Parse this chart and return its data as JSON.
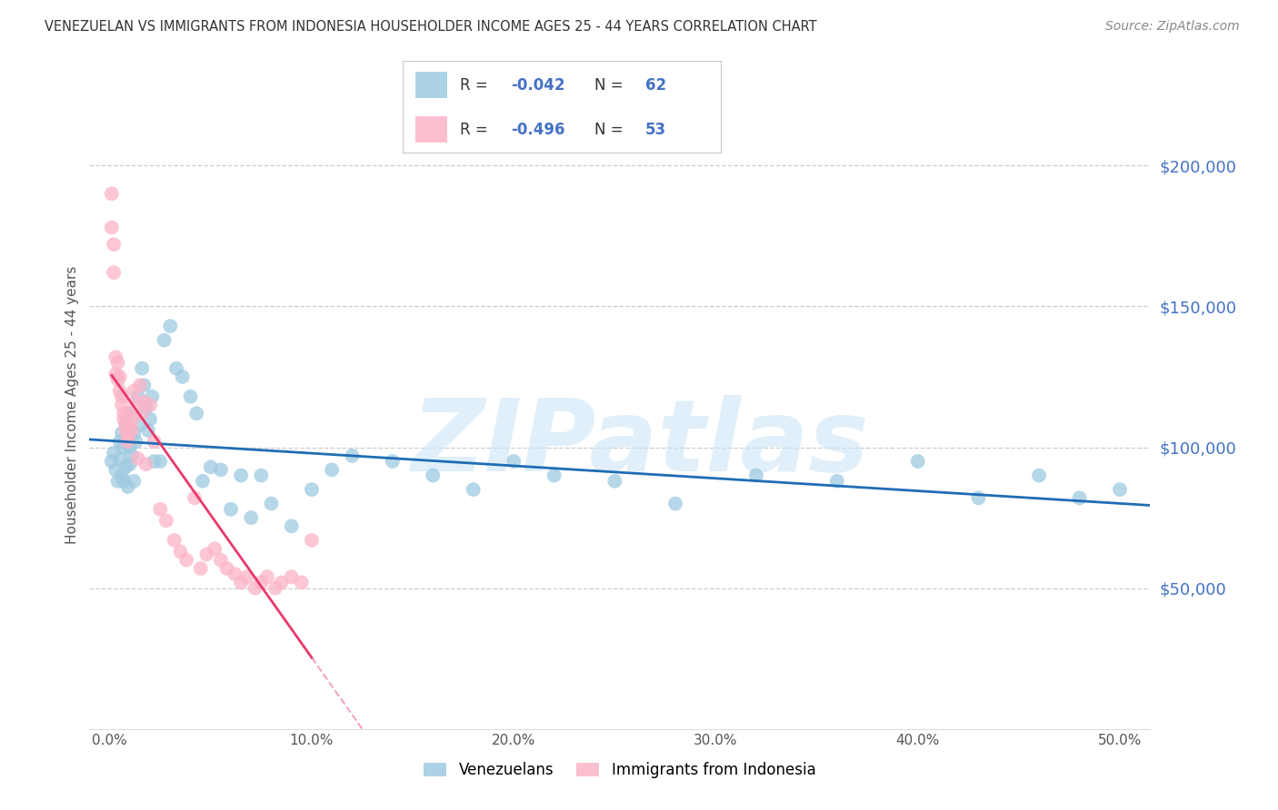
{
  "title": "VENEZUELAN VS IMMIGRANTS FROM INDONESIA HOUSEHOLDER INCOME AGES 25 - 44 YEARS CORRELATION CHART",
  "source": "Source: ZipAtlas.com",
  "xlabel_ticks": [
    "0.0%",
    "10.0%",
    "20.0%",
    "30.0%",
    "40.0%",
    "50.0%"
  ],
  "xlabel_vals": [
    0.0,
    0.1,
    0.2,
    0.3,
    0.4,
    0.5
  ],
  "ylabel_ticks": [
    "$50,000",
    "$100,000",
    "$150,000",
    "$200,000"
  ],
  "ylabel_vals": [
    50000,
    100000,
    150000,
    200000
  ],
  "ylim": [
    0,
    230000
  ],
  "xlim": [
    -0.01,
    0.515
  ],
  "watermark": "ZIPatlas",
  "venezuelan_color": "#9ecae1",
  "indonesian_color": "#fbb4c8",
  "venezuelan_line_color": "#1f6db5",
  "indonesian_line_color": "#e8396a",
  "venezuelan_x": [
    0.001,
    0.002,
    0.003,
    0.004,
    0.005,
    0.005,
    0.006,
    0.006,
    0.007,
    0.007,
    0.008,
    0.008,
    0.009,
    0.009,
    0.01,
    0.01,
    0.011,
    0.012,
    0.012,
    0.013,
    0.014,
    0.015,
    0.016,
    0.017,
    0.018,
    0.019,
    0.02,
    0.021,
    0.022,
    0.025,
    0.027,
    0.03,
    0.033,
    0.036,
    0.04,
    0.043,
    0.046,
    0.05,
    0.055,
    0.06,
    0.065,
    0.07,
    0.075,
    0.08,
    0.09,
    0.1,
    0.11,
    0.12,
    0.14,
    0.16,
    0.18,
    0.2,
    0.22,
    0.25,
    0.28,
    0.32,
    0.36,
    0.4,
    0.43,
    0.46,
    0.48,
    0.5
  ],
  "venezuelan_y": [
    95000,
    98000,
    92000,
    88000,
    102000,
    96000,
    90000,
    105000,
    88000,
    100000,
    93000,
    108000,
    86000,
    112000,
    94000,
    100000,
    97000,
    88000,
    105000,
    102000,
    118000,
    108000,
    128000,
    122000,
    114000,
    106000,
    110000,
    118000,
    95000,
    95000,
    138000,
    143000,
    128000,
    125000,
    118000,
    112000,
    88000,
    93000,
    92000,
    78000,
    90000,
    75000,
    90000,
    80000,
    72000,
    85000,
    92000,
    97000,
    95000,
    90000,
    85000,
    95000,
    90000,
    88000,
    80000,
    90000,
    88000,
    95000,
    82000,
    90000,
    82000,
    85000
  ],
  "indonesian_x": [
    0.001,
    0.001,
    0.002,
    0.002,
    0.003,
    0.003,
    0.004,
    0.004,
    0.005,
    0.005,
    0.006,
    0.006,
    0.007,
    0.007,
    0.008,
    0.008,
    0.009,
    0.009,
    0.01,
    0.01,
    0.011,
    0.011,
    0.012,
    0.013,
    0.014,
    0.015,
    0.016,
    0.017,
    0.018,
    0.02,
    0.022,
    0.025,
    0.028,
    0.032,
    0.035,
    0.038,
    0.042,
    0.045,
    0.048,
    0.052,
    0.055,
    0.058,
    0.062,
    0.065,
    0.068,
    0.072,
    0.075,
    0.078,
    0.082,
    0.085,
    0.09,
    0.095,
    0.1
  ],
  "indonesian_y": [
    190000,
    178000,
    172000,
    162000,
    132000,
    126000,
    130000,
    124000,
    125000,
    120000,
    118000,
    115000,
    112000,
    110000,
    108000,
    106000,
    104000,
    102000,
    108000,
    112000,
    106000,
    110000,
    120000,
    116000,
    96000,
    122000,
    112000,
    116000,
    94000,
    115000,
    102000,
    78000,
    74000,
    67000,
    63000,
    60000,
    82000,
    57000,
    62000,
    64000,
    60000,
    57000,
    55000,
    52000,
    54000,
    50000,
    52000,
    54000,
    50000,
    52000,
    54000,
    52000,
    67000
  ]
}
